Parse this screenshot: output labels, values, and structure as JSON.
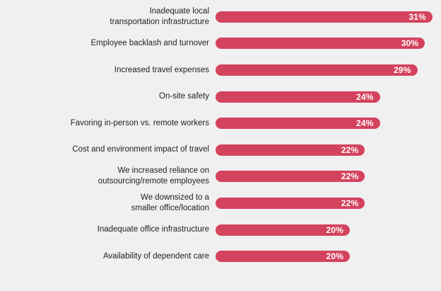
{
  "chart_data": {
    "type": "bar",
    "orientation": "horizontal",
    "title": "",
    "xlabel": "",
    "ylabel": "",
    "grid": false,
    "legend": false,
    "xlim": [
      0,
      31
    ],
    "value_suffix": "%",
    "categories": [
      "Inadequate local\ntransportation infrastructure",
      "Employee backlash and turnover",
      "Increased travel expenses",
      "On-site safety",
      "Favoring in-person vs. remote workers",
      "Cost and environment impact of travel",
      "We increased reliance on\noutsourcing/remote employees",
      "We downsized to a\nsmaller office/location",
      "Inadequate office infrastructure",
      "Availability of dependent care"
    ],
    "values": [
      31,
      30,
      29,
      24,
      24,
      22,
      22,
      22,
      20,
      20
    ],
    "value_labels": [
      "31%",
      "30%",
      "29%",
      "24%",
      "24%",
      "22%",
      "22%",
      "22%",
      "20%",
      "20%"
    ],
    "colors": {
      "background": "#f0f0f0",
      "bar": "#d4435e",
      "bar_label_text": "#222222",
      "value_text": "#ffffff"
    }
  }
}
